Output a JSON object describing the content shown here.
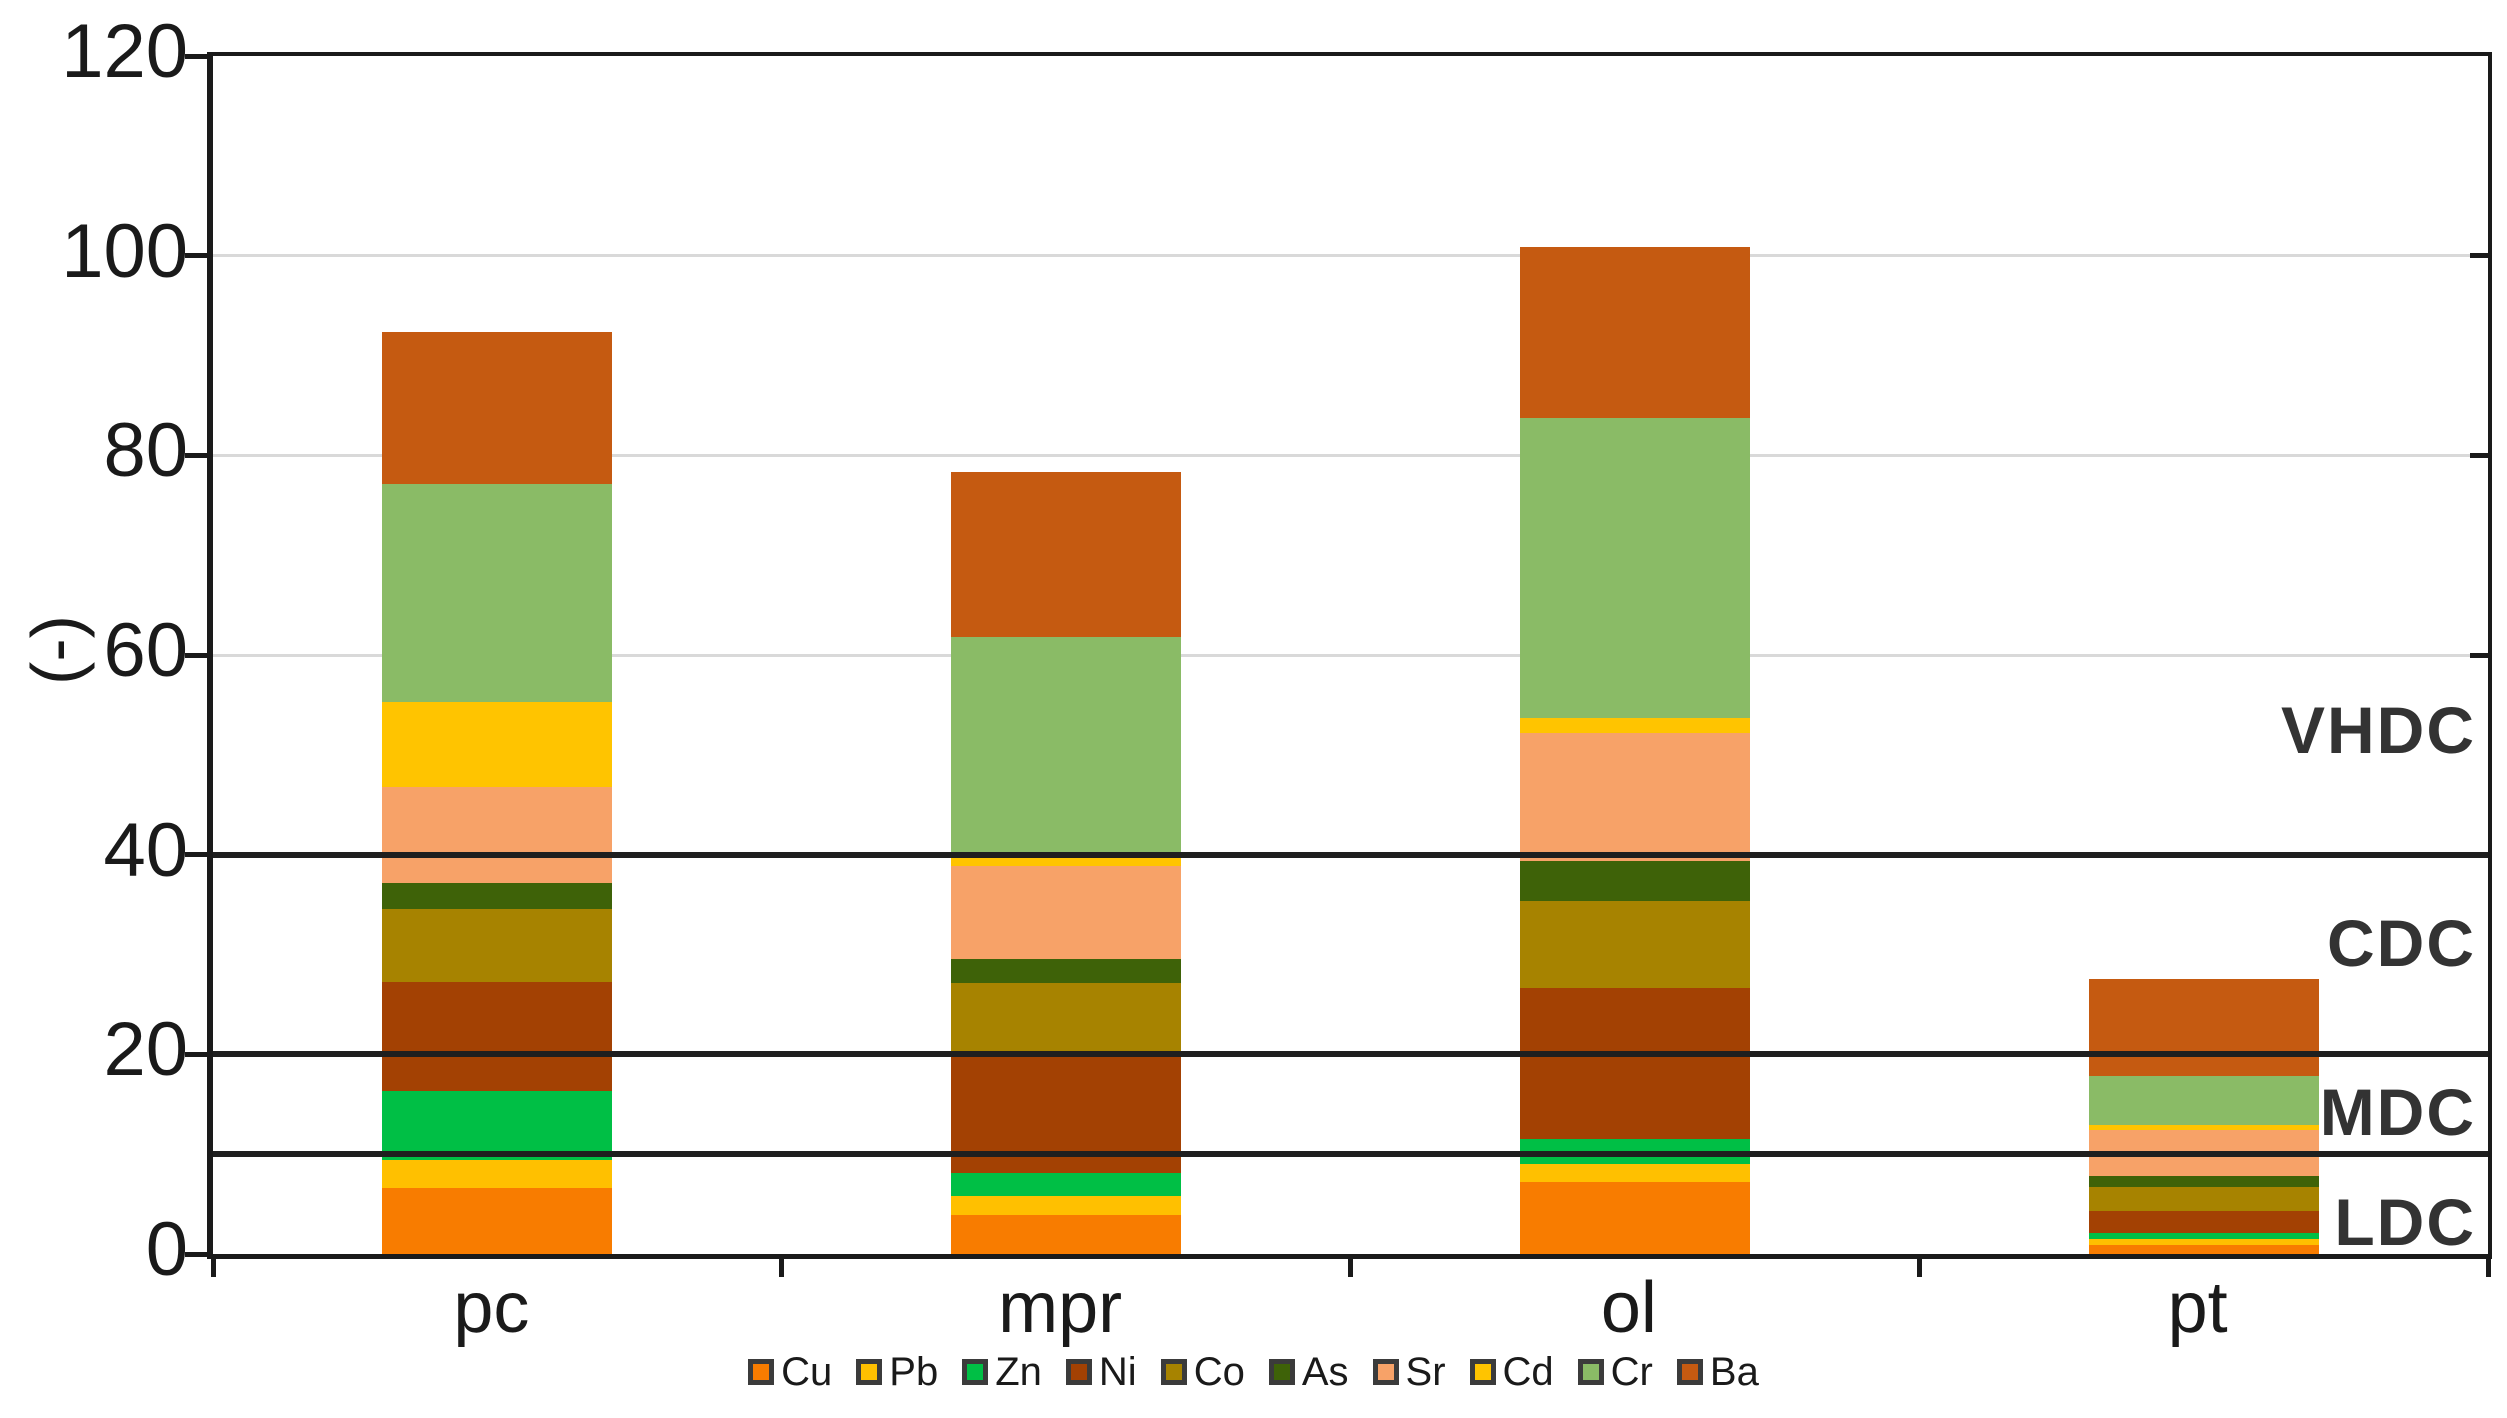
{
  "chart_data": {
    "type": "bar",
    "stacked": true,
    "title": "",
    "ylabel": "(-)",
    "xlabel": "",
    "ylim": [
      0,
      120
    ],
    "yticks": [
      0,
      20,
      40,
      60,
      80,
      100,
      120
    ],
    "grid": true,
    "legend_position": "bottom",
    "categories": [
      "pc",
      "mpr",
      "ol",
      "pt"
    ],
    "series": [
      {
        "name": "Cu",
        "color": "#F87C00",
        "values": [
          6.6,
          3.9,
          7.2,
          0.9
        ]
      },
      {
        "name": "Pb",
        "color": "#FFC000",
        "values": [
          2.8,
          1.9,
          1.8,
          0.6
        ]
      },
      {
        "name": "Zn",
        "color": "#00BF45",
        "values": [
          6.9,
          2.3,
          2.5,
          0.6
        ]
      },
      {
        "name": "Ni",
        "color": "#A34103",
        "values": [
          10.9,
          11.7,
          15.1,
          2.2
        ]
      },
      {
        "name": "Co",
        "color": "#A78300",
        "values": [
          7.4,
          7.3,
          8.8,
          2.4
        ]
      },
      {
        "name": "As",
        "color": "#3E6208",
        "values": [
          2.6,
          2.4,
          4.0,
          1.1
        ]
      },
      {
        "name": "Sr",
        "color": "#F7A268",
        "values": [
          9.6,
          9.4,
          12.8,
          4.6
        ]
      },
      {
        "name": "Cd",
        "color": "#FFC400",
        "values": [
          8.5,
          1.1,
          1.5,
          0.5
        ]
      },
      {
        "name": "Cr",
        "color": "#8ABB66",
        "values": [
          21.8,
          21.8,
          30.0,
          4.9
        ]
      },
      {
        "name": "Ba",
        "color": "#C55A11",
        "values": [
          15.3,
          16.5,
          17.2,
          9.7
        ]
      }
    ],
    "bar_totals": [
      92.4,
      78.3,
      100.9,
      27.5
    ],
    "reference_lines": [
      10,
      20,
      40
    ],
    "annotations": [
      {
        "label": "VHDC",
        "value": 52.5
      },
      {
        "label": "CDC",
        "value": 31.2
      },
      {
        "label": "MDC",
        "value": 14.2
      },
      {
        "label": "LDC",
        "value": 3.2
      }
    ]
  }
}
